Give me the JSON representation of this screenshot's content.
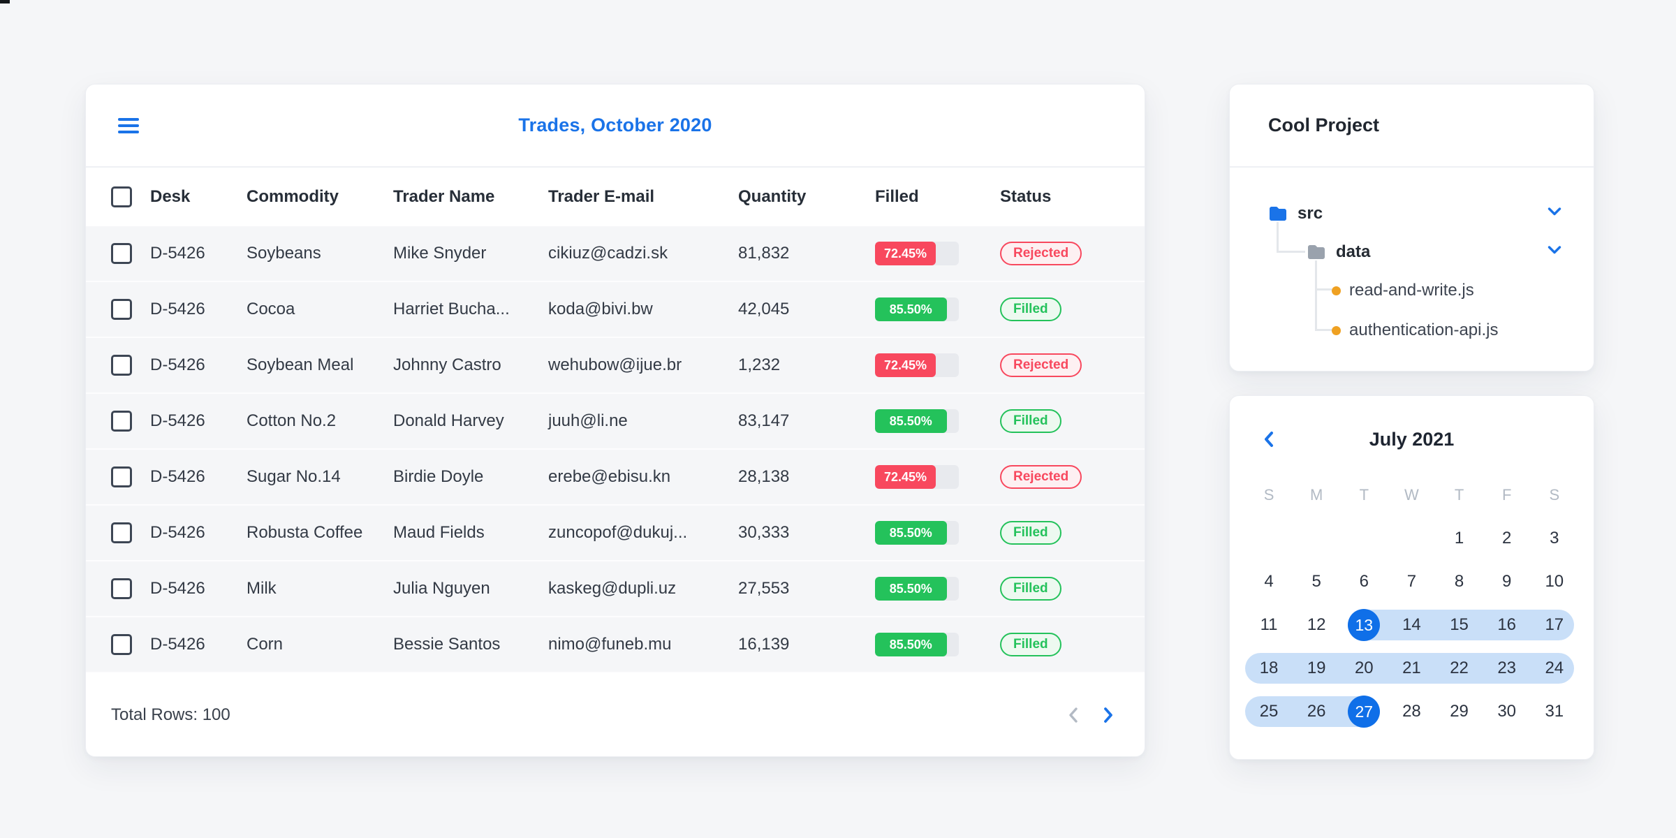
{
  "colors": {
    "accent": "#1a73e8",
    "selected": "#0f6fe8",
    "band": "#c9dff8",
    "red": "#f8485e",
    "red_bg": "#fdf0f2",
    "green": "#24c25b",
    "green_bg": "#edf9f0",
    "track": "#e8eaee",
    "orange": "#efa122"
  },
  "trades": {
    "title": "Trades, October 2020",
    "columns": [
      "Desk",
      "Commodity",
      "Trader Name",
      "Trader E-mail",
      "Quantity",
      "Filled",
      "Status"
    ],
    "rows": [
      {
        "desk": "D-5426",
        "commodity": "Soybeans",
        "trader": "Mike Snyder",
        "email": "cikiuz@cadzi.sk",
        "quantity": "81,832",
        "filled": "72.45%",
        "filled_pct": 72.45,
        "status": "Rejected"
      },
      {
        "desk": "D-5426",
        "commodity": "Cocoa",
        "trader": "Harriet Bucha...",
        "email": "koda@bivi.bw",
        "quantity": "42,045",
        "filled": "85.50%",
        "filled_pct": 85.5,
        "status": "Filled"
      },
      {
        "desk": "D-5426",
        "commodity": "Soybean Meal",
        "trader": "Johnny Castro",
        "email": "wehubow@ijue.br",
        "quantity": "1,232",
        "filled": "72.45%",
        "filled_pct": 72.45,
        "status": "Rejected"
      },
      {
        "desk": "D-5426",
        "commodity": "Cotton No.2",
        "trader": "Donald Harvey",
        "email": "juuh@li.ne",
        "quantity": "83,147",
        "filled": "85.50%",
        "filled_pct": 85.5,
        "status": "Filled"
      },
      {
        "desk": "D-5426",
        "commodity": "Sugar No.14",
        "trader": "Birdie Doyle",
        "email": "erebe@ebisu.kn",
        "quantity": "28,138",
        "filled": "72.45%",
        "filled_pct": 72.45,
        "status": "Rejected"
      },
      {
        "desk": "D-5426",
        "commodity": "Robusta Coffee",
        "trader": "Maud Fields",
        "email": "zuncopof@dukuj...",
        "quantity": "30,333",
        "filled": "85.50%",
        "filled_pct": 85.5,
        "status": "Filled"
      },
      {
        "desk": "D-5426",
        "commodity": "Milk",
        "trader": "Julia Nguyen",
        "email": "kaskeg@dupli.uz",
        "quantity": "27,553",
        "filled": "85.50%",
        "filled_pct": 85.5,
        "status": "Filled"
      },
      {
        "desk": "D-5426",
        "commodity": "Corn",
        "trader": "Bessie Santos",
        "email": "nimo@funeb.mu",
        "quantity": "16,139",
        "filled": "85.50%",
        "filled_pct": 85.5,
        "status": "Filled"
      }
    ],
    "footer": {
      "total_label": "Total Rows: 100"
    }
  },
  "project": {
    "title": "Cool Project",
    "tree": [
      {
        "label": "src",
        "type": "folder"
      },
      {
        "label": "data",
        "type": "folder"
      },
      {
        "label": "read-and-write.js",
        "type": "file"
      },
      {
        "label": "authentication-api.js",
        "type": "file"
      }
    ]
  },
  "calendar": {
    "title": "July 2021",
    "weekdays": [
      "S",
      "M",
      "T",
      "W",
      "T",
      "F",
      "S"
    ],
    "selected_days": [
      13,
      27
    ],
    "weeks": [
      {
        "days": [
          "",
          "",
          "",
          "",
          "1",
          "2",
          "3"
        ]
      },
      {
        "days": [
          "4",
          "5",
          "6",
          "7",
          "8",
          "9",
          "10"
        ]
      },
      {
        "days": [
          "11",
          "12",
          "13",
          "14",
          "15",
          "16",
          "17"
        ],
        "band": {
          "from_col": 2,
          "to_edge": "right"
        },
        "selected_cols": [
          2
        ]
      },
      {
        "days": [
          "18",
          "19",
          "20",
          "21",
          "22",
          "23",
          "24"
        ],
        "band": {
          "full": true
        }
      },
      {
        "days": [
          "25",
          "26",
          "27",
          "28",
          "29",
          "30",
          "31"
        ],
        "band": {
          "from_edge": "left",
          "to_col": 2
        },
        "selected_cols": [
          2
        ]
      }
    ]
  }
}
